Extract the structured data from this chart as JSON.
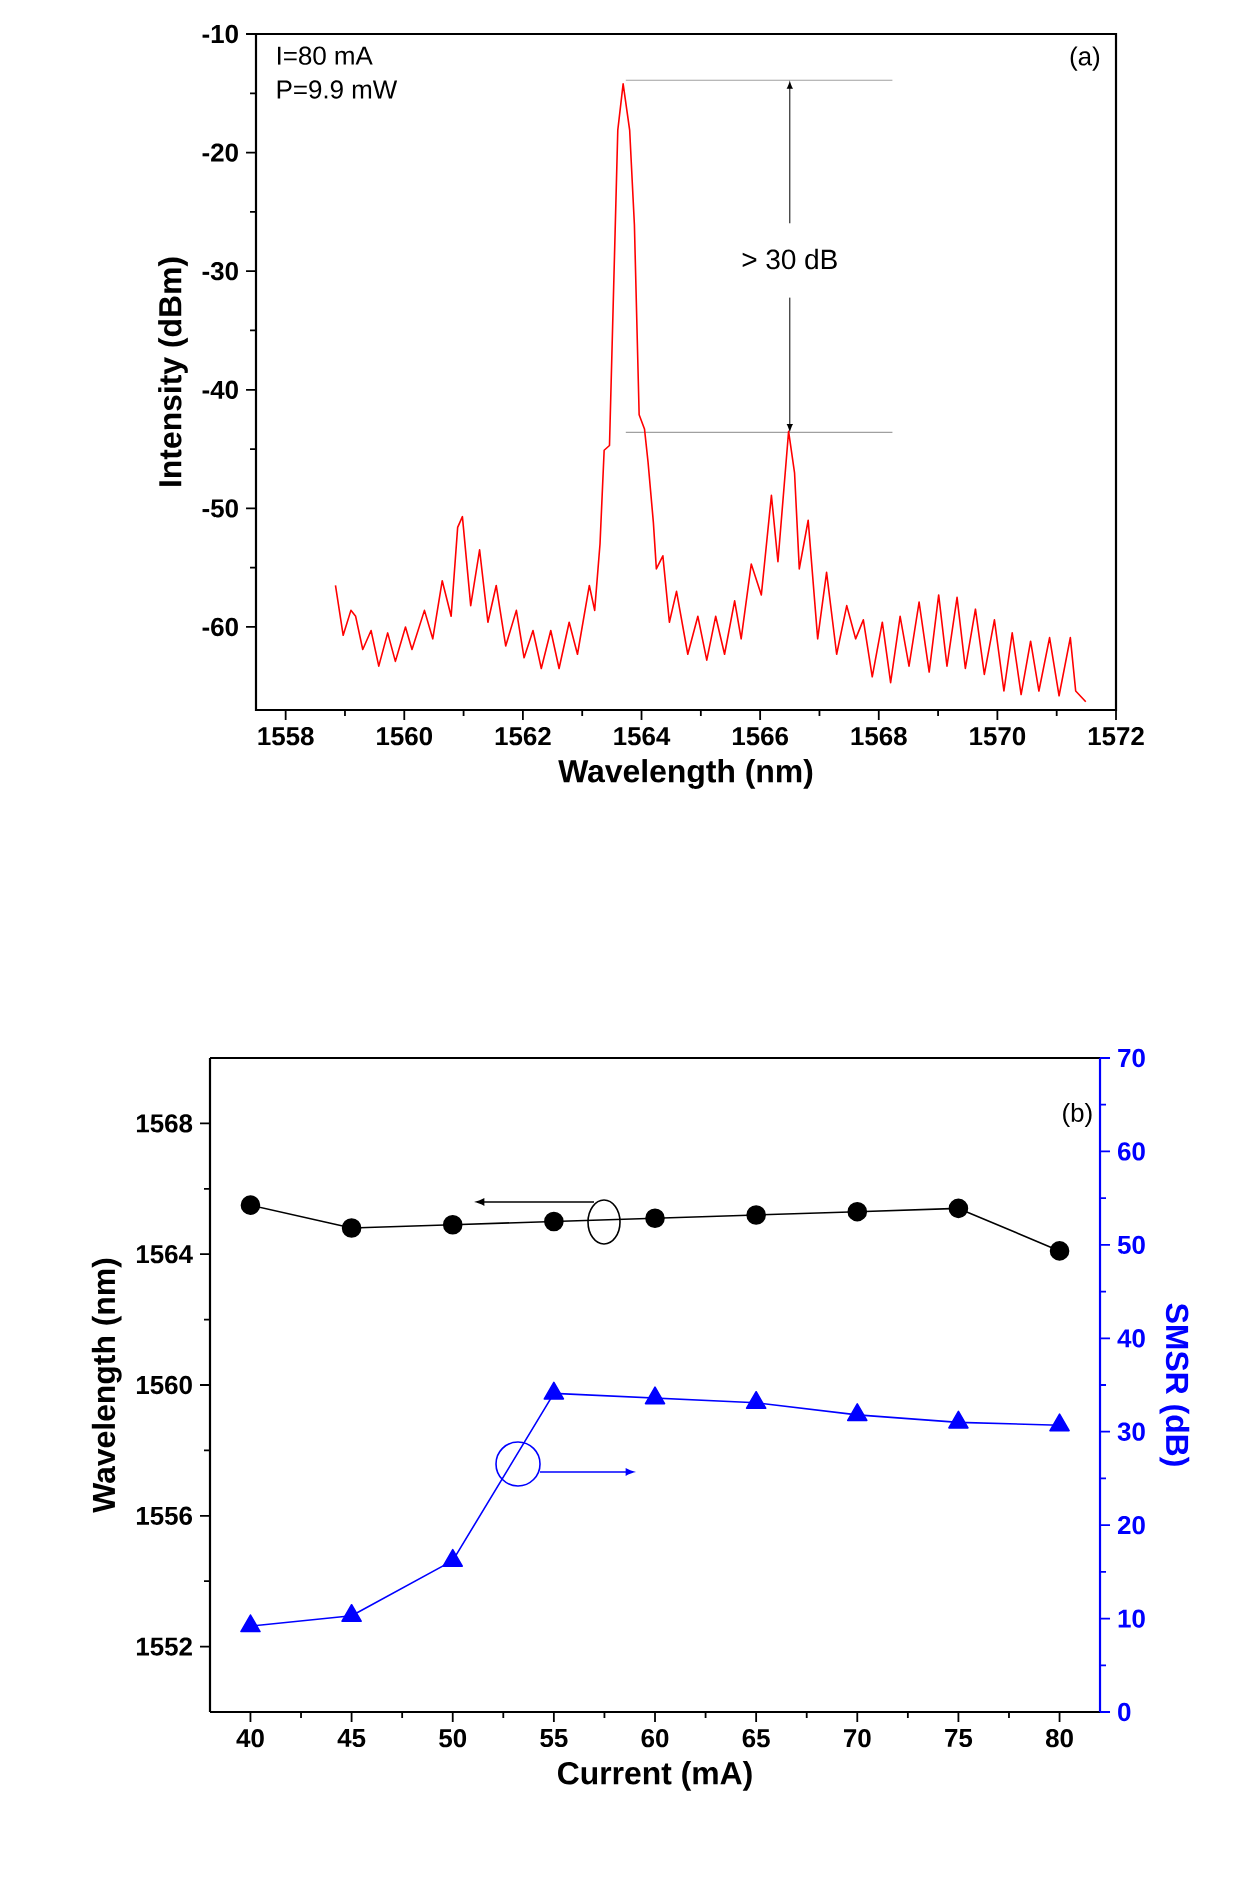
{
  "chart_data": [
    {
      "type": "line",
      "xlabel": "Wavelength (nm)",
      "ylabel": "Intensity (dBm)",
      "color": "#ff0000",
      "x": [
        1558.84,
        1558.97,
        1559.1,
        1559.18,
        1559.3,
        1559.44,
        1559.57,
        1559.72,
        1559.85,
        1560.02,
        1560.13,
        1560.34,
        1560.48,
        1560.64,
        1560.79,
        1560.9,
        1560.98,
        1561.12,
        1561.27,
        1561.41,
        1561.55,
        1561.71,
        1561.89,
        1562.02,
        1562.17,
        1562.31,
        1562.47,
        1562.61,
        1562.78,
        1562.92,
        1563.12,
        1563.21,
        1563.3,
        1563.37,
        1563.46,
        1563.6,
        1563.69,
        1563.8,
        1563.88,
        1563.96,
        1564.05,
        1564.11,
        1564.2,
        1564.25,
        1564.36,
        1564.47,
        1564.59,
        1564.78,
        1564.95,
        1565.1,
        1565.25,
        1565.4,
        1565.57,
        1565.68,
        1565.85,
        1566.02,
        1566.19,
        1566.3,
        1566.48,
        1566.58,
        1566.66,
        1566.81,
        1566.97,
        1567.12,
        1567.29,
        1567.46,
        1567.61,
        1567.74,
        1567.89,
        1568.06,
        1568.2,
        1568.36,
        1568.51,
        1568.68,
        1568.85,
        1569.01,
        1569.15,
        1569.32,
        1569.46,
        1569.63,
        1569.78,
        1569.95,
        1570.11,
        1570.25,
        1570.4,
        1570.56,
        1570.7,
        1570.88,
        1571.04,
        1571.23,
        1571.32,
        1571.49
      ],
      "values": [
        -56.5,
        -60.7,
        -58.6,
        -59.1,
        -61.9,
        -60.3,
        -63.3,
        -60.5,
        -62.9,
        -60.0,
        -61.9,
        -58.6,
        -61.0,
        -56.1,
        -59.1,
        -51.6,
        -50.7,
        -58.2,
        -53.5,
        -59.6,
        -56.5,
        -61.6,
        -58.6,
        -62.6,
        -60.3,
        -63.5,
        -60.3,
        -63.5,
        -59.6,
        -62.3,
        -56.5,
        -58.6,
        -53.0,
        -45.1,
        -44.7,
        -18.1,
        -14.2,
        -18.1,
        -26.1,
        -42.1,
        -43.3,
        -46.1,
        -51.2,
        -55.1,
        -54.0,
        -59.6,
        -57.0,
        -62.3,
        -59.1,
        -62.8,
        -59.1,
        -62.3,
        -57.8,
        -61.0,
        -54.7,
        -57.3,
        -48.9,
        -54.5,
        -43.5,
        -47.0,
        -55.1,
        -51.0,
        -61.0,
        -55.4,
        -62.3,
        -58.2,
        -61.0,
        -59.4,
        -64.2,
        -59.6,
        -64.7,
        -59.1,
        -63.3,
        -57.9,
        -63.8,
        -57.3,
        -63.3,
        -57.5,
        -63.5,
        -58.5,
        -64.0,
        -59.4,
        -65.4,
        -60.5,
        -65.7,
        -61.2,
        -65.4,
        -60.9,
        -65.8,
        -60.9,
        -65.4,
        -66.3
      ],
      "xlim": [
        1557.5,
        1572
      ],
      "ylim": [
        -67,
        -10
      ],
      "xticks": [
        1558,
        1560,
        1562,
        1564,
        1566,
        1568,
        1570,
        1572
      ],
      "yticks": [
        -60,
        -50,
        -40,
        -30,
        -20,
        -10
      ],
      "ref_lines": [
        {
          "axis": "y",
          "value": -13.9,
          "color": "#a0a0a0"
        },
        {
          "axis": "y",
          "value": -43.6,
          "color": "#a0a0a0"
        }
      ],
      "annotations": [
        "I=80 mA",
        "P=9.9 mW",
        "(a)",
        {
          "text": "> 30 dB",
          "x": 1566.5,
          "y": -43.6
        }
      ]
    },
    {
      "type": "line",
      "xlabel": "Current (mA)",
      "ylabel": "Wavelength (nm)",
      "y2label": "SMSR (dB)",
      "x": [
        40,
        45,
        50,
        55,
        60,
        65,
        70,
        75,
        80
      ],
      "series": [
        {
          "color": "#000000",
          "marker": "circle",
          "values": [
            1565.5,
            1564.8,
            1564.9,
            1565.0,
            1565.1,
            1565.2,
            1565.3,
            1565.4,
            1564.1
          ]
        },
        {
          "color": "#0000ff",
          "marker": "triangle",
          "axis": "y2",
          "values": [
            9.2,
            10.3,
            16.2,
            34.1,
            33.6,
            33.1,
            31.8,
            31.0,
            30.7
          ]
        }
      ],
      "xlim": [
        38,
        82
      ],
      "ylim": [
        1550,
        1570
      ],
      "y2lim": [
        0,
        70
      ],
      "xticks": [
        40,
        45,
        50,
        55,
        60,
        65,
        70,
        75,
        80
      ],
      "yticks": [
        1552,
        1556,
        1560,
        1564,
        1568
      ],
      "y2ticks": [
        0,
        10,
        20,
        30,
        40,
        50,
        60,
        70
      ],
      "annotations": [
        "(b)"
      ]
    }
  ]
}
